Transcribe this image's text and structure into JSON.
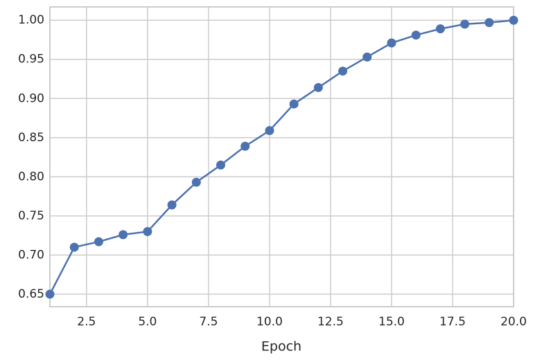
{
  "chart_data": {
    "type": "line",
    "x_label": "Epoch",
    "x": [
      1,
      2,
      3,
      4,
      5,
      6,
      7,
      8,
      9,
      10,
      11,
      12,
      13,
      14,
      15,
      16,
      17,
      18,
      19,
      20
    ],
    "series": [
      {
        "color": "#4c72b0",
        "values": [
          0.65,
          0.71,
          0.717,
          0.726,
          0.73,
          0.764,
          0.793,
          0.815,
          0.839,
          0.859,
          0.893,
          0.914,
          0.935,
          0.953,
          0.971,
          0.981,
          0.989,
          0.995,
          0.997,
          1.0
        ]
      }
    ],
    "xlim": [
      1,
      20
    ],
    "ylim": [
      0.634,
      1.017
    ],
    "xticks": [
      2.5,
      {
        "value": 5,
        "label": "5.0"
      },
      7.5,
      {
        "value": 10,
        "label": "10.0"
      },
      12.5,
      {
        "value": 15,
        "label": "15.0"
      },
      17.5,
      {
        "value": 20,
        "label": "20.0"
      }
    ],
    "yticks": [
      0.65,
      {
        "value": 0.7,
        "label": "0.70"
      },
      0.75,
      {
        "value": 0.8,
        "label": "0.80"
      },
      0.85,
      {
        "value": 0.9,
        "label": "0.90"
      },
      0.95,
      {
        "value": 1.0,
        "label": "1.00"
      }
    ],
    "grid": true
  }
}
